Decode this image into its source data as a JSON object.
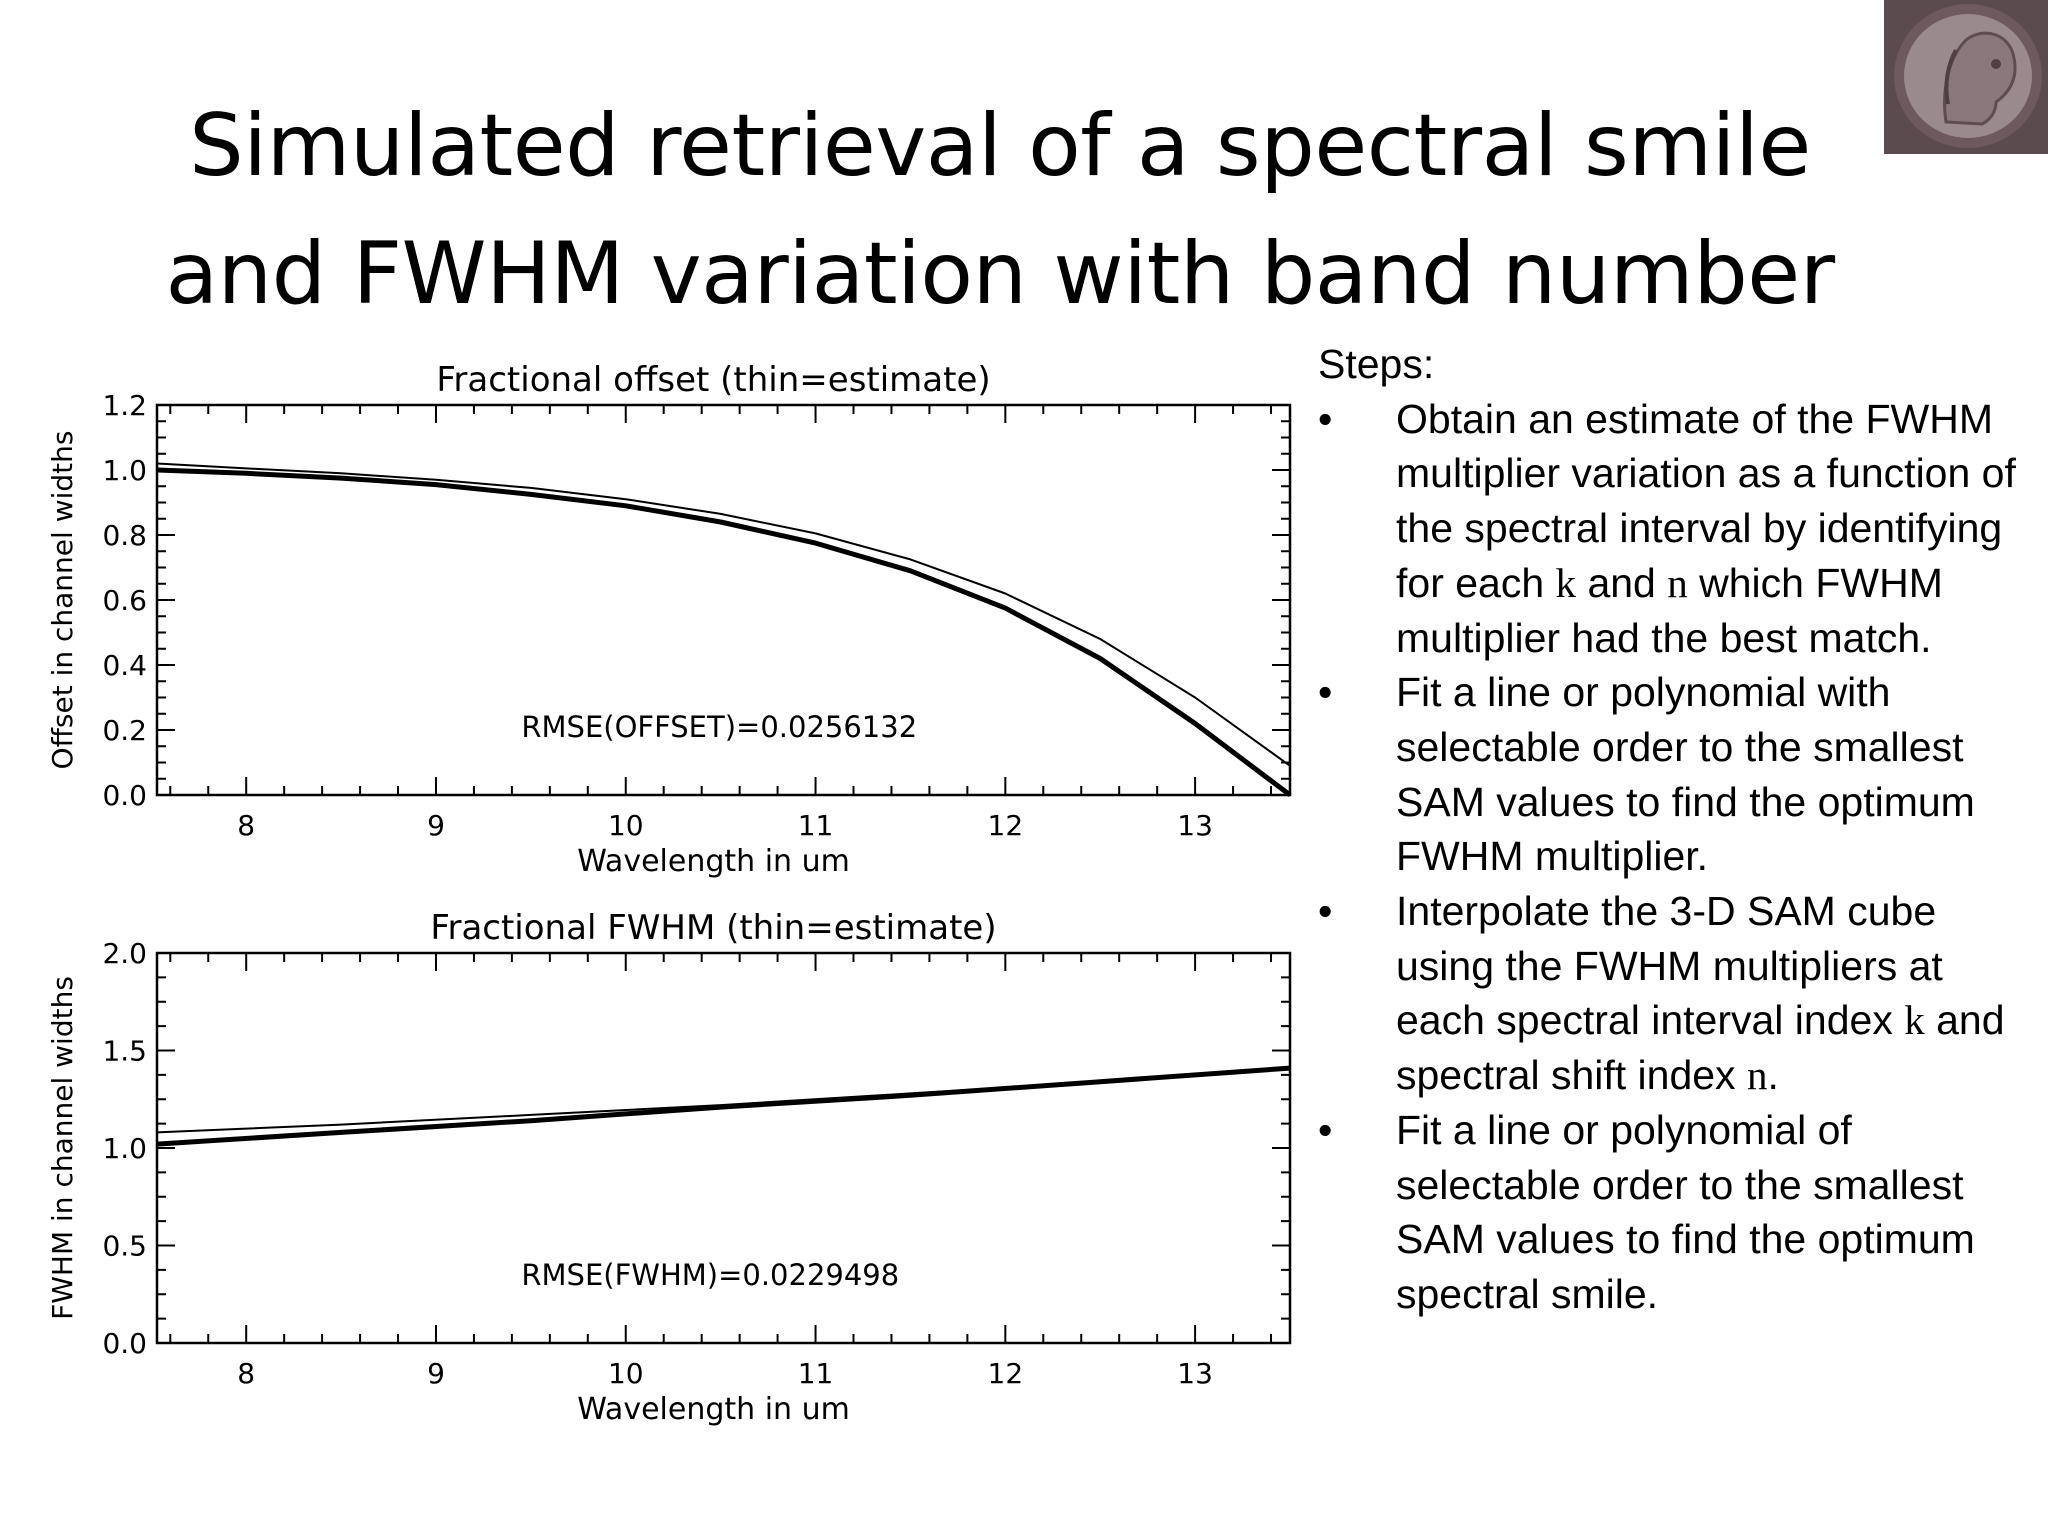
{
  "title": {
    "line1": "Simulated retrieval of a spectral smile",
    "line2": "and FWHM variation with band number"
  },
  "logo": {
    "icon": "coin-portrait-icon",
    "colors": {
      "rim": "#6e5a5e",
      "face": "#9a8a8e",
      "bg": "#5b4a4e"
    }
  },
  "steps": {
    "heading": "Steps:",
    "bullet": "•",
    "items": [
      {
        "parts": [
          "Obtain an estimate of the FWHM multiplier variation as a function of the spectral interval by identifying for each ",
          "k",
          " and ",
          "n",
          " which FWHM multiplier had the best match."
        ]
      },
      {
        "parts": [
          "Fit a line or polynomial with selectable order to the smallest SAM values to find the optimum FWHM multiplier."
        ]
      },
      {
        "parts": [
          "Interpolate the  3-D SAM cube using the FWHM multipliers at each spectral interval index ",
          "k",
          " and spectral shift index ",
          "n",
          "."
        ]
      },
      {
        "parts": [
          "Fit a line or polynomial of selectable order to the smallest SAM values to find the optimum spectral smile."
        ]
      }
    ]
  },
  "chart_data": [
    {
      "type": "line",
      "title": "Fractional offset (thin=estimate)",
      "xlabel": "Wavelength in um",
      "ylabel": "Offset in channel widths",
      "xlim": [
        7.53,
        13.5
      ],
      "ylim": [
        0.0,
        1.2
      ],
      "xticks": [
        8,
        9,
        10,
        11,
        12,
        13
      ],
      "yticks": [
        0.0,
        0.2,
        0.4,
        0.6,
        0.8,
        1.0,
        1.2
      ],
      "ytick_labels": [
        "0.0",
        "0.2",
        "0.4",
        "0.6",
        "0.8",
        "1.0",
        "1.2"
      ],
      "annotation": "RMSE(OFFSET)=0.0256132",
      "grid": false,
      "series": [
        {
          "style": "thick",
          "x": [
            7.53,
            8.0,
            8.5,
            9.0,
            9.5,
            10.0,
            10.5,
            11.0,
            11.5,
            12.0,
            12.5,
            13.0,
            13.5
          ],
          "values": [
            1.0,
            0.99,
            0.975,
            0.955,
            0.925,
            0.89,
            0.84,
            0.775,
            0.69,
            0.575,
            0.42,
            0.22,
            0.0
          ]
        },
        {
          "style": "thin",
          "x": [
            7.53,
            8.0,
            8.5,
            9.0,
            9.5,
            10.0,
            10.5,
            11.0,
            11.5,
            12.0,
            12.5,
            13.0,
            13.5
          ],
          "values": [
            1.02,
            1.005,
            0.99,
            0.97,
            0.945,
            0.91,
            0.865,
            0.805,
            0.725,
            0.62,
            0.48,
            0.3,
            0.09
          ]
        }
      ]
    },
    {
      "type": "line",
      "title": "Fractional FWHM (thin=estimate)",
      "xlabel": "Wavelength in um",
      "ylabel": "FWHM in channel widths",
      "xlim": [
        7.53,
        13.5
      ],
      "ylim": [
        0.0,
        2.0
      ],
      "xticks": [
        8,
        9,
        10,
        11,
        12,
        13
      ],
      "yticks": [
        0.0,
        0.5,
        1.0,
        1.5,
        2.0
      ],
      "ytick_labels": [
        "0.0",
        "0.5",
        "1.0",
        "1.5",
        "2.0"
      ],
      "annotation": "RMSE(FWHM)=0.0229498",
      "grid": false,
      "series": [
        {
          "style": "thick",
          "x": [
            7.53,
            8.5,
            9.5,
            10.5,
            11.5,
            12.5,
            13.5
          ],
          "values": [
            1.02,
            1.08,
            1.14,
            1.21,
            1.27,
            1.34,
            1.41
          ]
        },
        {
          "style": "thin",
          "x": [
            7.53,
            8.5,
            9.5,
            10.5,
            11.5,
            12.5,
            13.5
          ],
          "values": [
            1.08,
            1.12,
            1.17,
            1.22,
            1.28,
            1.34,
            1.41
          ]
        }
      ]
    }
  ]
}
